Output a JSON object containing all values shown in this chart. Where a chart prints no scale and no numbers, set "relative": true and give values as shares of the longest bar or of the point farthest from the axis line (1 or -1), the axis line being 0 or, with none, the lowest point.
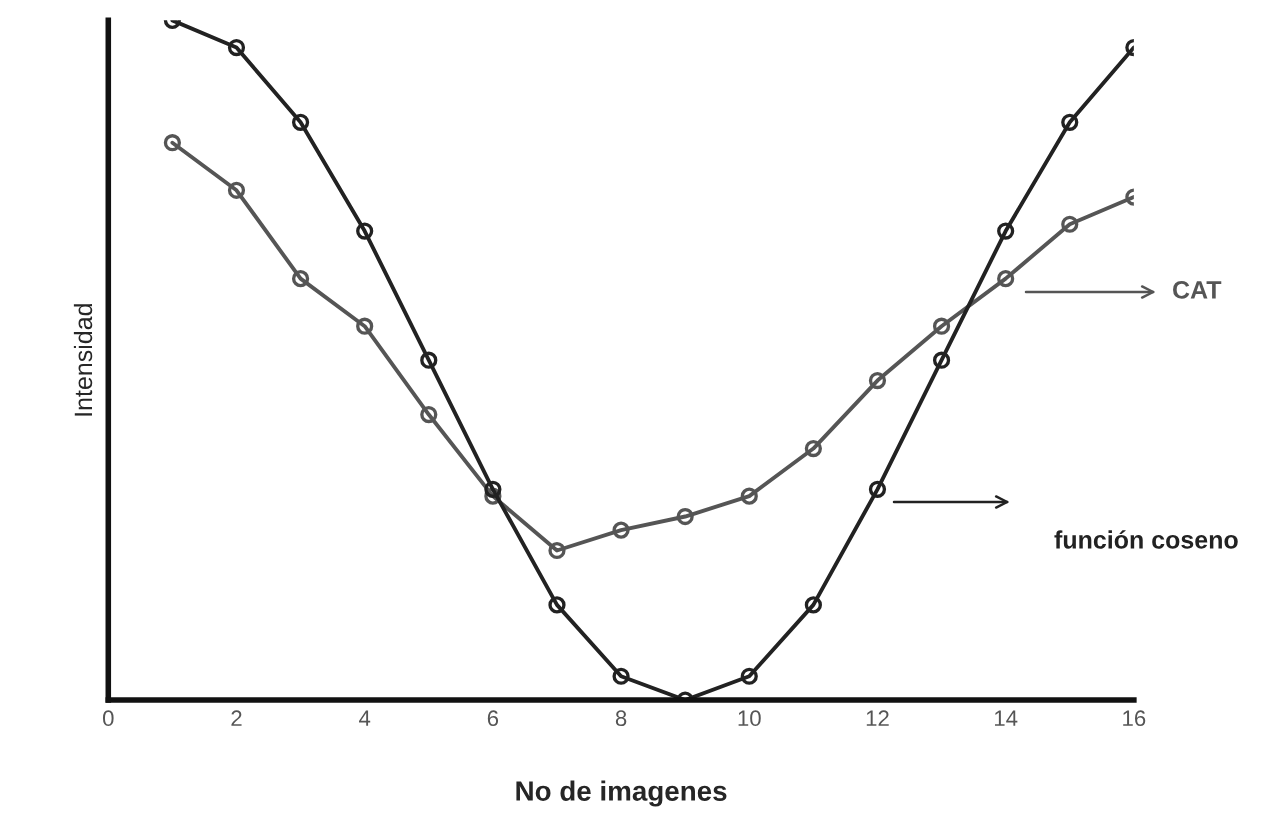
{
  "chart_data": {
    "type": "line",
    "relative": true,
    "xlabel": "No de imagenes",
    "ylabel": "Intensidad",
    "x": [
      1,
      2,
      3,
      4,
      5,
      6,
      7,
      8,
      9,
      10,
      11,
      12,
      13,
      14,
      15,
      16
    ],
    "xlim": [
      0,
      16
    ],
    "xticks": [
      0,
      2,
      4,
      6,
      8,
      10,
      12,
      14,
      16
    ],
    "series": [
      {
        "name": "CAT",
        "color": "#555555",
        "values": [
          0.82,
          0.75,
          0.62,
          0.55,
          0.42,
          0.3,
          0.22,
          0.25,
          0.27,
          0.3,
          0.37,
          0.47,
          0.55,
          0.62,
          0.7,
          0.74
        ]
      },
      {
        "name": "función coseno",
        "color": "#222222",
        "values": [
          1.0,
          0.96,
          0.85,
          0.69,
          0.5,
          0.31,
          0.14,
          0.035,
          0,
          0.035,
          0.14,
          0.31,
          0.5,
          0.69,
          0.85,
          0.96
        ]
      }
    ],
    "marker": "circle",
    "line_style": "solid",
    "grid": false,
    "legend": "right"
  }
}
